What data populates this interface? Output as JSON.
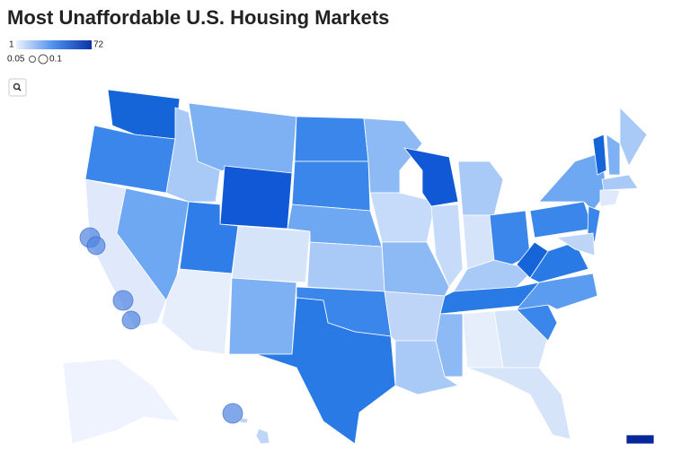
{
  "header": {
    "title": "Most Unaffordable U.S. Housing Markets"
  },
  "legend": {
    "color_min": "1",
    "color_max": "72",
    "size_small": "0.05",
    "size_large": "0.1"
  }
}
